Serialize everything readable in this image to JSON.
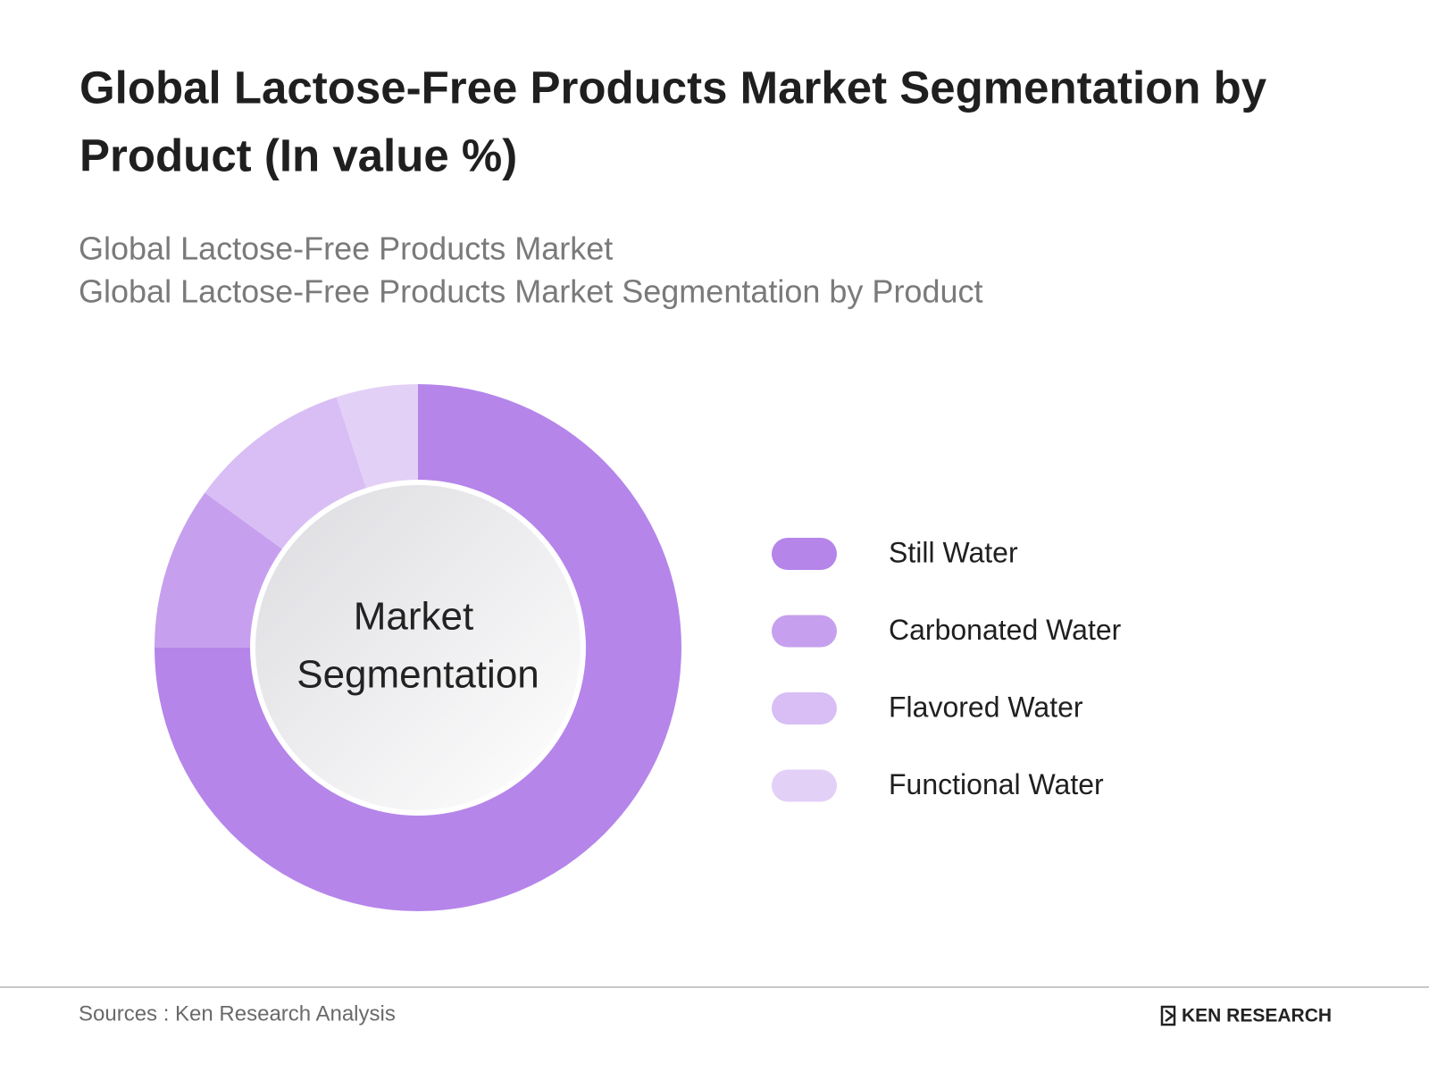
{
  "chart_data": {
    "type": "donut",
    "title_lines": [
      "Global Lactose-Free Products Market Segmentation by",
      "Product (In value %)"
    ],
    "subtitle_lines": [
      "Global Lactose-Free Products Market",
      "Global Lactose-Free Products Market Segmentation by Product"
    ],
    "center_label_lines": [
      "Market",
      "Segmentation"
    ],
    "categories": [
      "Still Water",
      "Carbonated Water",
      "Flavored Water",
      "Functional Water"
    ],
    "values": [
      75,
      10,
      10,
      5
    ],
    "colors": [
      "#b585ea",
      "#c6a0ee",
      "#d8bef4",
      "#e3d0f7"
    ],
    "source": "Sources : Ken Research Analysis",
    "logo": "KEN RESEARCH"
  }
}
